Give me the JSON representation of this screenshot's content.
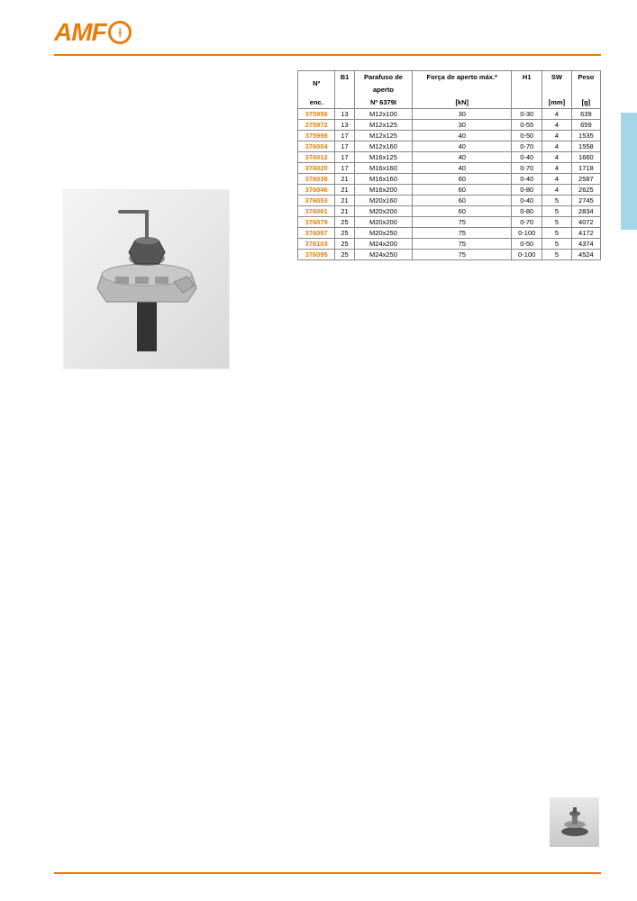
{
  "logo_text": "AMF",
  "logo_symbol": "⟊",
  "table": {
    "headers_row1": [
      "Nº",
      "B1",
      "Parafuso de",
      "Força de aperto máx.*",
      "H1",
      "SW",
      "Peso"
    ],
    "headers_row2": [
      "enc.",
      "",
      "aperto",
      "",
      "",
      "",
      ""
    ],
    "headers_row3": [
      "",
      "",
      "Nº 6379I",
      "[kN]",
      "",
      "[mm]",
      "[g]"
    ],
    "rows": [
      [
        "375956",
        "13",
        "M12x100",
        "30",
        "0-30",
        "4",
        "639"
      ],
      [
        "375972",
        "13",
        "M12x125",
        "30",
        "0-55",
        "4",
        "659"
      ],
      [
        "375998",
        "17",
        "M12x125",
        "40",
        "0-50",
        "4",
        "1535"
      ],
      [
        "376004",
        "17",
        "M12x160",
        "40",
        "0-70",
        "4",
        "1558"
      ],
      [
        "376012",
        "17",
        "M16x125",
        "40",
        "0-40",
        "4",
        "1660"
      ],
      [
        "376020",
        "17",
        "M16x160",
        "40",
        "0-70",
        "4",
        "1718"
      ],
      [
        "376038",
        "21",
        "M16x160",
        "60",
        "0-40",
        "4",
        "2587"
      ],
      [
        "376046",
        "21",
        "M16x200",
        "60",
        "0-80",
        "4",
        "2625"
      ],
      [
        "376053",
        "21",
        "M20x160",
        "60",
        "0-40",
        "5",
        "2745"
      ],
      [
        "376061",
        "21",
        "M20x200",
        "60",
        "0-80",
        "5",
        "2834"
      ],
      [
        "376079",
        "25",
        "M20x200",
        "75",
        "0-70",
        "5",
        "4072"
      ],
      [
        "376087",
        "25",
        "M20x250",
        "75",
        "0-100",
        "5",
        "4172"
      ],
      [
        "376103",
        "25",
        "M24x200",
        "75",
        "0-50",
        "5",
        "4374"
      ],
      [
        "376095",
        "25",
        "M24x250",
        "75",
        "0-100",
        "5",
        "4524"
      ]
    ]
  }
}
